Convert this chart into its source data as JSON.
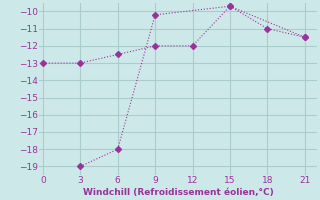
{
  "line1_x": [
    0,
    3,
    6,
    9,
    12,
    15,
    18,
    21
  ],
  "line1_y": [
    -13,
    -13,
    -12.5,
    -12,
    -12,
    -9.7,
    -11,
    -11.5
  ],
  "line2_x": [
    3,
    6,
    9,
    15,
    21
  ],
  "line2_y": [
    -19,
    -18,
    -10.2,
    -9.7,
    -11.5
  ],
  "line_color": "#993399",
  "bg_color": "#cce8e8",
  "grid_color": "#aacccc",
  "xlabel": "Windchill (Refroidissement éolien,°C)",
  "xlabel_color": "#993399",
  "ylim": [
    -19.5,
    -9.5
  ],
  "xlim": [
    -0.3,
    22
  ],
  "yticks": [
    -19,
    -18,
    -17,
    -16,
    -15,
    -14,
    -13,
    -12,
    -11,
    -10
  ],
  "xticks": [
    0,
    3,
    6,
    9,
    12,
    15,
    18,
    21
  ],
  "tick_color": "#993399",
  "markersize": 3
}
